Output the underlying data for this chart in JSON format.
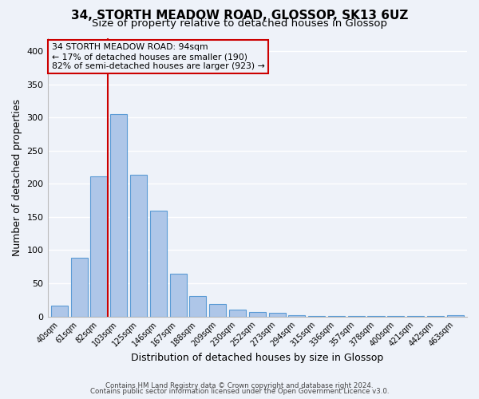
{
  "title": "34, STORTH MEADOW ROAD, GLOSSOP, SK13 6UZ",
  "subtitle": "Size of property relative to detached houses in Glossop",
  "xlabel": "Distribution of detached houses by size in Glossop",
  "ylabel": "Number of detached properties",
  "bar_labels": [
    "40sqm",
    "61sqm",
    "82sqm",
    "103sqm",
    "125sqm",
    "146sqm",
    "167sqm",
    "188sqm",
    "209sqm",
    "230sqm",
    "252sqm",
    "273sqm",
    "294sqm",
    "315sqm",
    "336sqm",
    "357sqm",
    "378sqm",
    "400sqm",
    "421sqm",
    "442sqm",
    "463sqm"
  ],
  "bar_values": [
    16,
    88,
    211,
    305,
    214,
    160,
    64,
    31,
    19,
    10,
    7,
    5,
    2,
    1,
    1,
    1,
    1,
    1,
    1,
    1,
    2
  ],
  "bar_color": "#aec6e8",
  "bar_edge_color": "#5b9bd5",
  "vline_x_idx": 2,
  "vline_color": "#cc0000",
  "ylim": [
    0,
    420
  ],
  "yticks": [
    0,
    50,
    100,
    150,
    200,
    250,
    300,
    350,
    400
  ],
  "annotation_title": "34 STORTH MEADOW ROAD: 94sqm",
  "annotation_line1": "← 17% of detached houses are smaller (190)",
  "annotation_line2": "82% of semi-detached houses are larger (923) →",
  "annotation_box_color": "#cc0000",
  "footer1": "Contains HM Land Registry data © Crown copyright and database right 2024.",
  "footer2": "Contains public sector information licensed under the Open Government Licence v3.0.",
  "bg_color": "#eef2f9",
  "grid_color": "#ffffff",
  "title_fontsize": 11,
  "subtitle_fontsize": 9.5
}
